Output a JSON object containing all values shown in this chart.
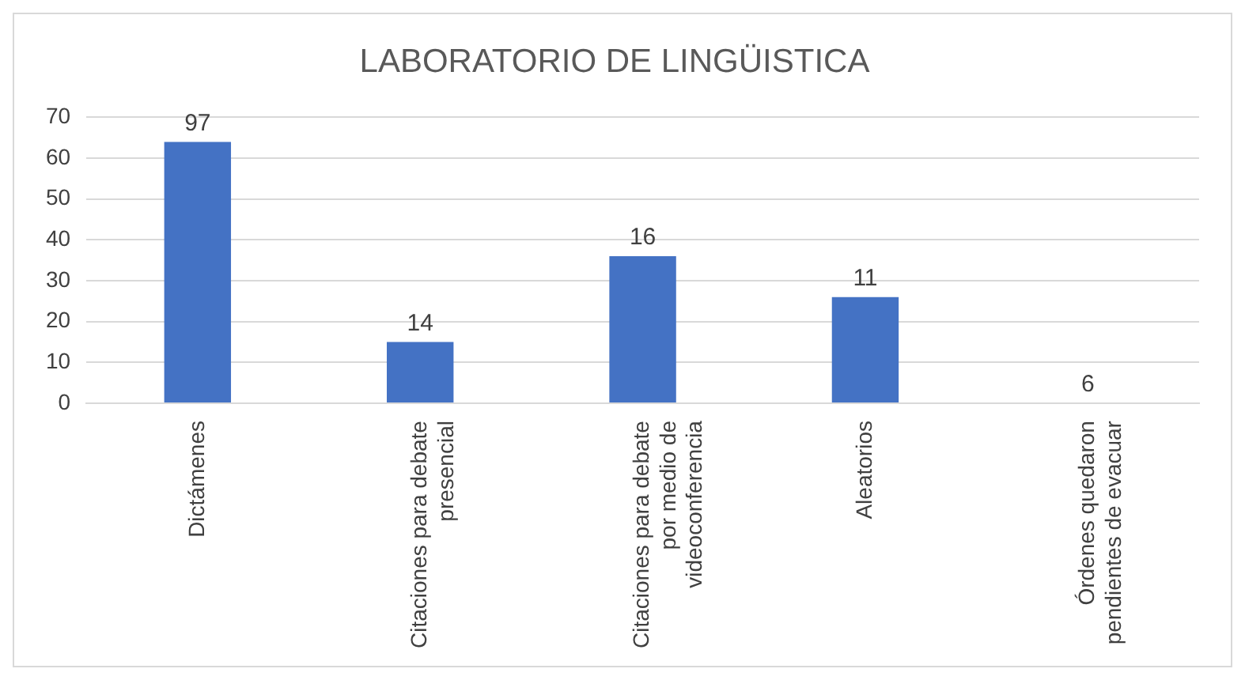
{
  "chart_data": {
    "type": "bar",
    "title": "LABORATORIO DE LINGÜISTICA",
    "categories": [
      "Dictámenes",
      "Citaciones para debate presencial",
      "Citaciones para debate por medio de videoconferencia",
      "Aleatorios",
      "Órdenes quedaron pendientes de evacuar"
    ],
    "values": [
      64,
      15,
      36,
      26,
      0
    ],
    "color": "#4472c4",
    "annotations": [
      {
        "text": "97",
        "x": "Dictámenes",
        "y": 64
      },
      {
        "text": "14",
        "x": "Citaciones para debate presencial",
        "y": 15
      },
      {
        "text": "16",
        "x": "Citaciones para debate por medio de videoconferencia",
        "y": 36
      },
      {
        "text": "11",
        "x": "Aleatorios",
        "y": 26
      },
      {
        "text": "6",
        "x": "Órdenes quedaron pendientes de evacuar",
        "y": 0
      }
    ],
    "ylim": [
      0,
      70
    ],
    "yticks": [
      0,
      10,
      20,
      30,
      40,
      50,
      60,
      70
    ],
    "grid": "y",
    "legend": false
  }
}
